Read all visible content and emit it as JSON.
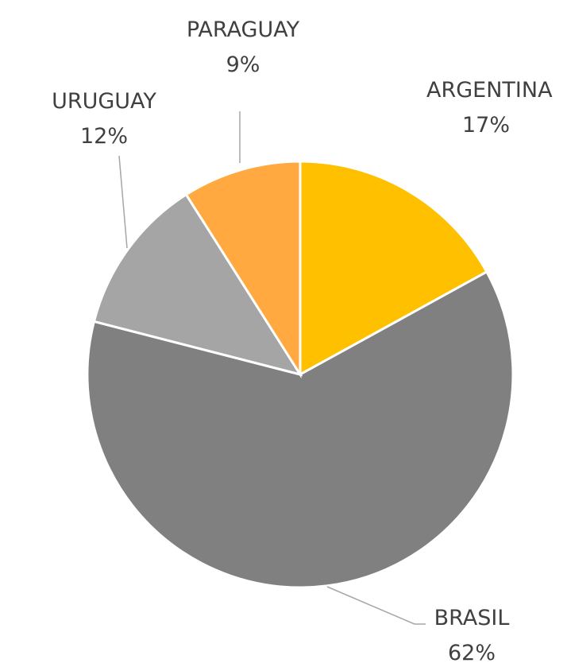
{
  "chart_data": {
    "type": "pie",
    "categories": [
      "ARGENTINA",
      "BRASIL",
      "URUGUAY",
      "PARAGUAY"
    ],
    "values": [
      17,
      62,
      12,
      9
    ],
    "value_labels": [
      "17%",
      "62%",
      "12%",
      "9%"
    ],
    "colors": [
      "#ffc000",
      "#808080",
      "#a5a5a5",
      "#ffa940"
    ]
  }
}
